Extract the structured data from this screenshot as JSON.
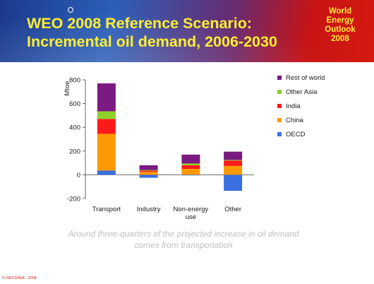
{
  "slide": {
    "title_line1": "WEO 2008 Reference Scenario:",
    "title_line2": "Incremental oil demand, 2006-2030",
    "logo_lines": [
      "World",
      "Energy",
      "Outlook",
      "2008"
    ],
    "caption_line1": "Around three-quarters of the projected increase in oil demand",
    "caption_line2": "comes from transportation",
    "footer": "© OECD/IEA - 2008",
    "colors": {
      "title": "#ffee33",
      "caption": "#bfbfbf",
      "footer": "#d81b1b"
    }
  },
  "chart_data": {
    "type": "bar",
    "stacked": true,
    "categories": [
      "Transport",
      "Industry",
      "Non-energy use",
      "Other"
    ],
    "category_label_lines": [
      [
        "Transport"
      ],
      [
        "Industry"
      ],
      [
        "Non-energy",
        "use"
      ],
      [
        "Other"
      ]
    ],
    "series": [
      {
        "name": "OECD",
        "color": "#3a6fe0",
        "values": [
          35,
          -25,
          -5,
          -135
        ]
      },
      {
        "name": "China",
        "color": "#ff9900",
        "values": [
          310,
          25,
          50,
          75
        ]
      },
      {
        "name": "India",
        "color": "#ff1a1a",
        "values": [
          125,
          10,
          30,
          45
        ]
      },
      {
        "name": "Other Asia",
        "color": "#8ed12a",
        "values": [
          65,
          5,
          15,
          5
        ]
      },
      {
        "name": "Rest of world",
        "color": "#7a1a82",
        "values": [
          235,
          40,
          75,
          70
        ]
      }
    ],
    "ylabel": "Mtoe",
    "ylim": [
      -200,
      800
    ],
    "yticks": [
      -200,
      0,
      200,
      400,
      600,
      800
    ],
    "grid": false,
    "legend_position": "right"
  }
}
